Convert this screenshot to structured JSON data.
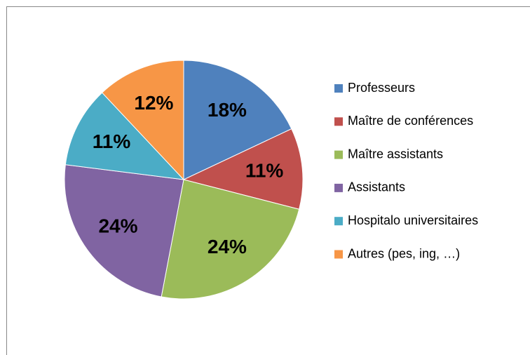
{
  "chart_data": {
    "type": "pie",
    "categories": [
      "Professeurs",
      "Maître de conférences",
      "Maître assistants",
      "Assistants",
      "Hospitalo universitaires",
      "Autres (pes, ing, …)"
    ],
    "values": [
      18,
      11,
      24,
      24,
      11,
      12
    ],
    "value_labels": [
      "18%",
      "11%",
      "24%",
      "24%",
      "11%",
      "12%"
    ],
    "colors": [
      "#4f81bd",
      "#c0504d",
      "#9bbb59",
      "#8064a2",
      "#4bacc6",
      "#f79646"
    ],
    "legend": "right"
  }
}
